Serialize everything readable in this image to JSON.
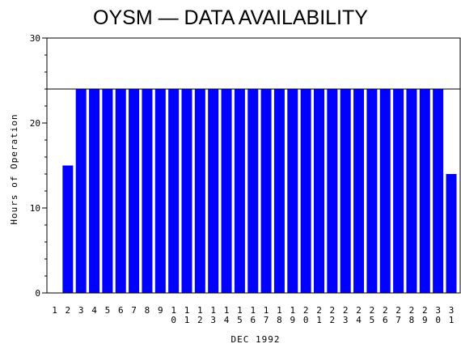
{
  "chart_data": {
    "type": "bar",
    "title": "OYSM — DATA AVAILABILITY",
    "xlabel": "DEC 1992",
    "ylabel": "Hours of Operation",
    "ylim": [
      0,
      30
    ],
    "yticks": [
      0,
      10,
      20,
      30
    ],
    "reference_line": 24,
    "bar_color": "#0000ff",
    "categories": [
      "1",
      "2",
      "3",
      "4",
      "5",
      "6",
      "7",
      "8",
      "9",
      "10",
      "11",
      "12",
      "13",
      "14",
      "15",
      "16",
      "17",
      "18",
      "19",
      "20",
      "21",
      "22",
      "23",
      "24",
      "25",
      "26",
      "27",
      "28",
      "29",
      "30",
      "31"
    ],
    "values": [
      0,
      15,
      24,
      24,
      24,
      24,
      24,
      24,
      24,
      24,
      24,
      24,
      24,
      24,
      24,
      24,
      24,
      24,
      24,
      24,
      24,
      24,
      24,
      24,
      24,
      24,
      24,
      24,
      24,
      24,
      14
    ]
  }
}
